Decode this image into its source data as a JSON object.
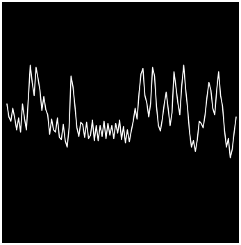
{
  "trace": {
    "background_color": "#000000",
    "frame_color": "#ffffff",
    "line_color": "#ffffff",
    "signal": [
      0.62,
      0.5,
      0.46,
      0.58,
      0.49,
      0.38,
      0.49,
      0.36,
      0.62,
      0.49,
      0.38,
      0.67,
      0.98,
      0.82,
      0.7,
      0.96,
      0.86,
      0.75,
      0.56,
      0.69,
      0.57,
      0.52,
      0.34,
      0.48,
      0.38,
      0.36,
      0.49,
      0.31,
      0.29,
      0.43,
      0.28,
      0.22,
      0.4,
      0.88,
      0.78,
      0.6,
      0.4,
      0.32,
      0.45,
      0.43,
      0.31,
      0.45,
      0.3,
      0.33,
      0.47,
      0.28,
      0.42,
      0.28,
      0.42,
      0.32,
      0.46,
      0.3,
      0.44,
      0.33,
      0.42,
      0.3,
      0.44,
      0.35,
      0.47,
      0.29,
      0.41,
      0.26,
      0.38,
      0.27,
      0.37,
      0.46,
      0.58,
      0.48,
      0.72,
      0.9,
      0.95,
      0.7,
      0.63,
      0.5,
      0.63,
      0.96,
      0.88,
      0.6,
      0.42,
      0.37,
      0.48,
      0.62,
      0.73,
      0.58,
      0.42,
      0.54,
      0.92,
      0.78,
      0.63,
      0.52,
      0.79,
      0.98,
      0.76,
      0.58,
      0.36,
      0.22,
      0.28,
      0.18,
      0.29,
      0.46,
      0.44,
      0.4,
      0.52,
      0.69,
      0.82,
      0.75,
      0.58,
      0.52,
      0.75,
      0.92,
      0.7,
      0.6,
      0.38,
      0.22,
      0.3,
      0.12,
      0.2,
      0.36,
      0.5
    ]
  }
}
